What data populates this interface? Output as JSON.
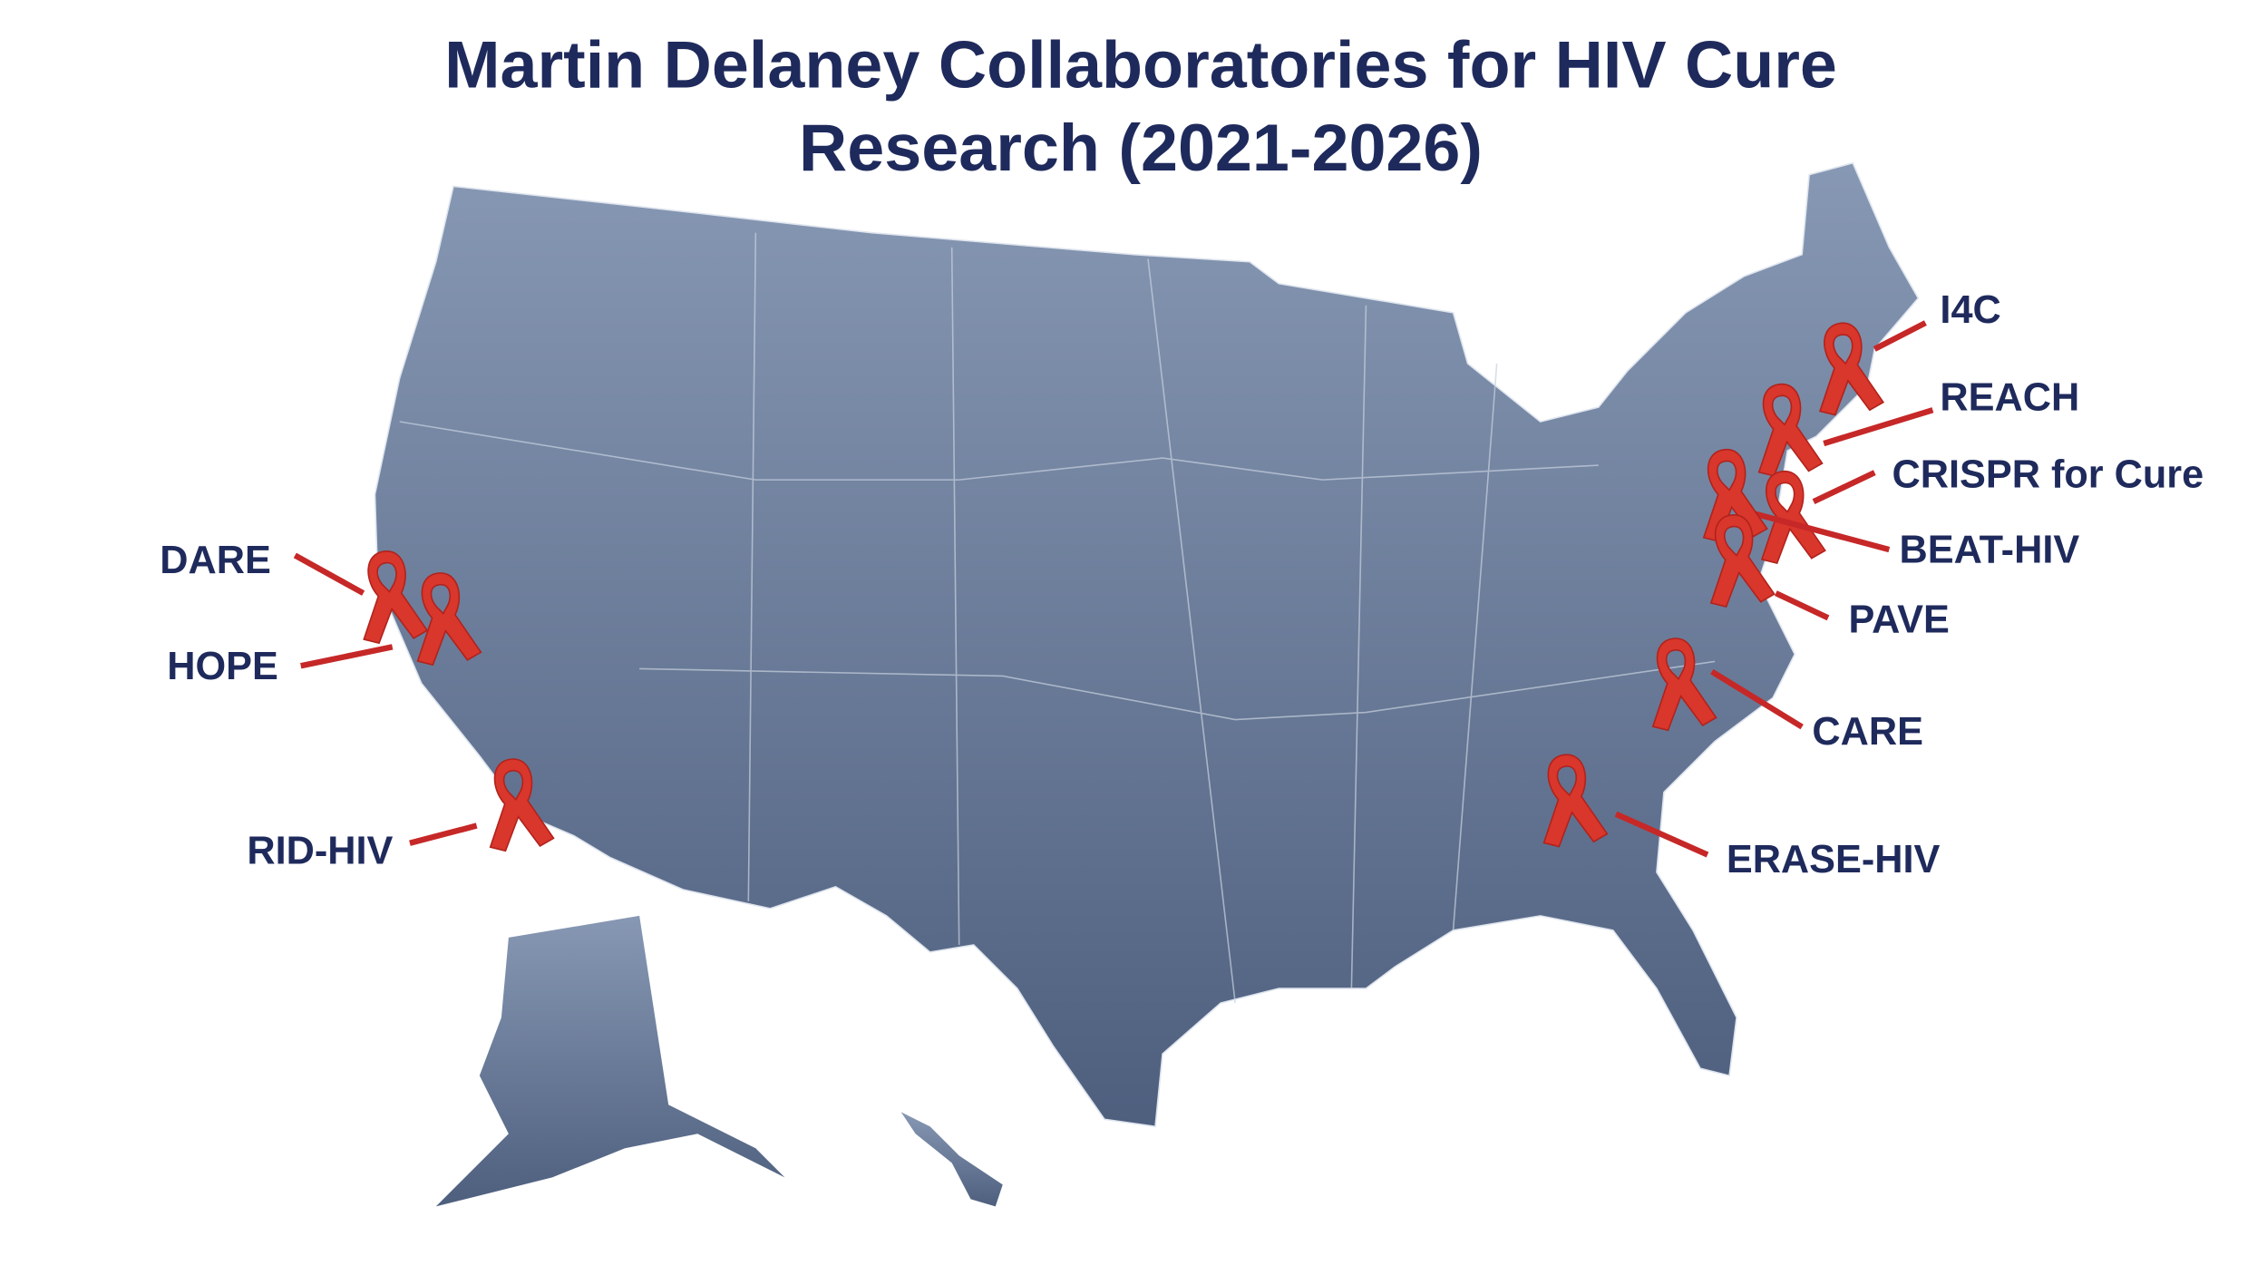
{
  "title_lines": [
    "Martin Delaney Collaboratories for HIV Cure",
    "Research (2021-2026)"
  ],
  "sites": [
    {
      "label": "I4C"
    },
    {
      "label": "REACH"
    },
    {
      "label": "CRISPR for Cure"
    },
    {
      "label": "BEAT-HIV"
    },
    {
      "label": "PAVE"
    },
    {
      "label": "CARE"
    },
    {
      "label": "ERASE-HIV"
    },
    {
      "label": "DARE"
    },
    {
      "label": "HOPE"
    },
    {
      "label": "RID-HIV"
    }
  ]
}
